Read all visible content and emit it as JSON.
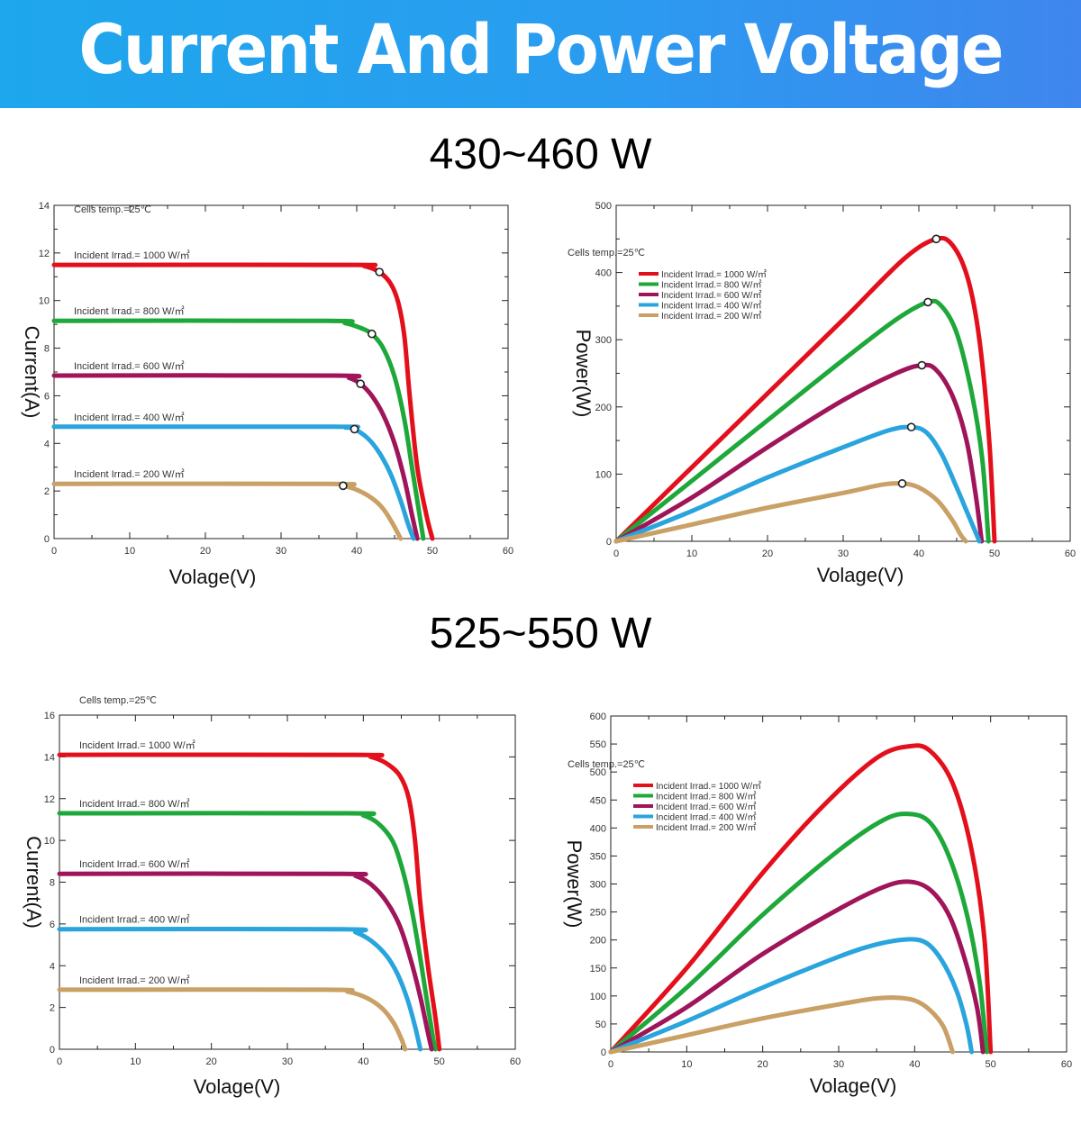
{
  "banner": {
    "title": "Current And Power Voltage"
  },
  "sections": [
    {
      "title": "430~460 W"
    },
    {
      "title": "525~550 W"
    }
  ],
  "colors": {
    "banner_start": "#1ea7ec",
    "banner_end": "#3f86ee",
    "irrad_1000": "#e3101c",
    "irrad_800": "#1ea83a",
    "irrad_600": "#a0145a",
    "irrad_400": "#2aa4dd",
    "irrad_200": "#c9a065"
  },
  "chart_data": [
    {
      "type": "line",
      "xlabel": "Volage(V)",
      "ylabel": "Current(A)",
      "xlim": [
        0,
        60
      ],
      "ylim": [
        0,
        14
      ],
      "xticks": [
        0,
        10,
        20,
        30,
        40,
        50,
        60
      ],
      "yticks": [
        0,
        2,
        4,
        6,
        8,
        10,
        12,
        14
      ],
      "grid": false,
      "annotation": "Cells temp.=25℃",
      "series": [
        {
          "name": "Incident Irrad.= 1000 W/㎡",
          "color": "#e3101c",
          "points": [
            [
              0,
              11.5
            ],
            [
              39,
              11.5
            ],
            [
              41,
              11.45
            ],
            [
              43,
              11.2
            ],
            [
              44.5,
              10.7
            ],
            [
              45.5,
              9.9
            ],
            [
              46.3,
              8.5
            ],
            [
              47,
              6
            ],
            [
              48,
              3
            ],
            [
              49.2,
              1
            ],
            [
              50,
              0
            ]
          ],
          "mpp": [
            43,
            11.2
          ]
        },
        {
          "name": "Incident Irrad.= 800 W/㎡",
          "color": "#1ea83a",
          "points": [
            [
              0,
              9.15
            ],
            [
              36,
              9.15
            ],
            [
              38.5,
              9.05
            ],
            [
              40.5,
              8.85
            ],
            [
              42,
              8.6
            ],
            [
              43.5,
              8.0
            ],
            [
              45,
              6.8
            ],
            [
              46.3,
              5
            ],
            [
              47.3,
              3
            ],
            [
              48.2,
              1.2
            ],
            [
              48.8,
              0
            ]
          ],
          "mpp": [
            42,
            8.6
          ]
        },
        {
          "name": "Incident Irrad.= 600 W/㎡",
          "color": "#a0145a",
          "points": [
            [
              0,
              6.85
            ],
            [
              37,
              6.85
            ],
            [
              39,
              6.75
            ],
            [
              40.5,
              6.5
            ],
            [
              42,
              6.0
            ],
            [
              43.5,
              5.2
            ],
            [
              45,
              4
            ],
            [
              46.3,
              2.5
            ],
            [
              47.3,
              1.0
            ],
            [
              48,
              0
            ]
          ],
          "mpp": [
            40.5,
            6.5
          ]
        },
        {
          "name": "Incident Irrad.= 400 W/㎡",
          "color": "#2aa4dd",
          "points": [
            [
              0,
              4.7
            ],
            [
              37,
              4.7
            ],
            [
              38.5,
              4.67
            ],
            [
              39.7,
              4.6
            ],
            [
              41.5,
              4.2
            ],
            [
              43,
              3.6
            ],
            [
              44.5,
              2.7
            ],
            [
              45.8,
              1.6
            ],
            [
              46.8,
              0.6
            ],
            [
              47.5,
              0
            ]
          ],
          "mpp": [
            39.7,
            4.6
          ]
        },
        {
          "name": "Incident Irrad.= 200 W/㎡",
          "color": "#c9a065",
          "points": [
            [
              0,
              2.3
            ],
            [
              36.5,
              2.3
            ],
            [
              38.2,
              2.22
            ],
            [
              40,
              2.05
            ],
            [
              42,
              1.7
            ],
            [
              43.5,
              1.25
            ],
            [
              44.8,
              0.6
            ],
            [
              45.8,
              0
            ]
          ],
          "mpp": [
            38.2,
            2.22
          ]
        }
      ]
    },
    {
      "type": "line",
      "xlabel": "Volage(V)",
      "ylabel": "Power(W)",
      "xlim": [
        0,
        60
      ],
      "ylim": [
        0,
        500
      ],
      "xticks": [
        0,
        10,
        20,
        30,
        40,
        50,
        60
      ],
      "yticks": [
        0,
        100,
        200,
        300,
        400,
        500
      ],
      "grid": false,
      "annotation": "Cells temp.=25℃",
      "series": [
        {
          "name": "Incident Irrad.= 1000 W/㎡",
          "color": "#e3101c",
          "points": [
            [
              0,
              0
            ],
            [
              10,
              110
            ],
            [
              20,
              220
            ],
            [
              30,
              330
            ],
            [
              38,
              420
            ],
            [
              42.3,
              450
            ],
            [
              44.5,
              440
            ],
            [
              46.5,
              390
            ],
            [
              48,
              300
            ],
            [
              49.3,
              150
            ],
            [
              50,
              0
            ]
          ],
          "mpp": [
            42.3,
            450
          ]
        },
        {
          "name": "Incident Irrad.= 800 W/㎡",
          "color": "#1ea83a",
          "points": [
            [
              0,
              0
            ],
            [
              10,
              90
            ],
            [
              20,
              180
            ],
            [
              30,
              270
            ],
            [
              37,
              330
            ],
            [
              41.2,
              356
            ],
            [
              43,
              350
            ],
            [
              45,
              310
            ],
            [
              47,
              220
            ],
            [
              48.4,
              120
            ],
            [
              49.2,
              0
            ]
          ],
          "mpp": [
            41.2,
            356
          ]
        },
        {
          "name": "Incident Irrad.= 600 W/㎡",
          "color": "#a0145a",
          "points": [
            [
              0,
              0
            ],
            [
              10,
              65
            ],
            [
              20,
              140
            ],
            [
              30,
              210
            ],
            [
              37,
              250
            ],
            [
              40.4,
              262
            ],
            [
              42.3,
              255
            ],
            [
              44.5,
              215
            ],
            [
              46.3,
              150
            ],
            [
              47.5,
              70
            ],
            [
              48.3,
              0
            ]
          ],
          "mpp": [
            40.4,
            262
          ]
        },
        {
          "name": "Incident Irrad.= 400 W/㎡",
          "color": "#2aa4dd",
          "points": [
            [
              0,
              0
            ],
            [
              10,
              45
            ],
            [
              20,
              95
            ],
            [
              30,
              140
            ],
            [
              36,
              165
            ],
            [
              39,
              170
            ],
            [
              41,
              162
            ],
            [
              43,
              130
            ],
            [
              45,
              80
            ],
            [
              46.5,
              40
            ],
            [
              48,
              0
            ]
          ],
          "mpp": [
            39,
            170
          ]
        },
        {
          "name": "Incident Irrad.= 200 W/㎡",
          "color": "#c9a065",
          "points": [
            [
              0,
              0
            ],
            [
              10,
              25
            ],
            [
              20,
              50
            ],
            [
              30,
              72
            ],
            [
              35,
              84
            ],
            [
              37.8,
              86
            ],
            [
              40,
              80
            ],
            [
              42.5,
              60
            ],
            [
              44.5,
              30
            ],
            [
              45.5,
              10
            ],
            [
              46.2,
              0
            ]
          ],
          "mpp": [
            37.8,
            86
          ]
        }
      ]
    },
    {
      "type": "line",
      "xlabel": "Volage(V)",
      "ylabel": "Current(A)",
      "xlim": [
        0,
        60
      ],
      "ylim": [
        0,
        16
      ],
      "xticks": [
        0,
        10,
        20,
        30,
        40,
        50,
        60
      ],
      "yticks": [
        0,
        2,
        4,
        6,
        8,
        10,
        12,
        14,
        16
      ],
      "grid": false,
      "annotation": "Cells temp.=25℃",
      "series": [
        {
          "name": "Incident Irrad.= 1000 W/㎡",
          "color": "#e3101c",
          "points": [
            [
              0,
              14.1
            ],
            [
              39,
              14.1
            ],
            [
              41,
              14.0
            ],
            [
              43,
              13.7
            ],
            [
              44.8,
              13.1
            ],
            [
              46,
              12
            ],
            [
              46.8,
              10
            ],
            [
              47.5,
              7
            ],
            [
              48.5,
              4
            ],
            [
              49.5,
              1.5
            ],
            [
              50,
              0
            ]
          ],
          "mpp": null
        },
        {
          "name": "Incident Irrad.= 800 W/㎡",
          "color": "#1ea83a",
          "points": [
            [
              0,
              11.3
            ],
            [
              38,
              11.3
            ],
            [
              40,
              11.2
            ],
            [
              42,
              10.8
            ],
            [
              43.8,
              10
            ],
            [
              45,
              8.8
            ],
            [
              46.2,
              7
            ],
            [
              47.3,
              4.8
            ],
            [
              48.3,
              2.5
            ],
            [
              49.2,
              0.5
            ],
            [
              49.5,
              0
            ]
          ],
          "mpp": null
        },
        {
          "name": "Incident Irrad.= 600 W/㎡",
          "color": "#a0145a",
          "points": [
            [
              0,
              8.4
            ],
            [
              37,
              8.4
            ],
            [
              39,
              8.3
            ],
            [
              41,
              7.9
            ],
            [
              43,
              7.1
            ],
            [
              44.8,
              5.9
            ],
            [
              46.3,
              4.2
            ],
            [
              47.5,
              2.5
            ],
            [
              48.5,
              0.8
            ],
            [
              49,
              0
            ]
          ],
          "mpp": null
        },
        {
          "name": "Incident Irrad.= 400 W/㎡",
          "color": "#2aa4dd",
          "points": [
            [
              0,
              5.75
            ],
            [
              37,
              5.75
            ],
            [
              39,
              5.6
            ],
            [
              41,
              5.2
            ],
            [
              43,
              4.5
            ],
            [
              44.5,
              3.6
            ],
            [
              45.8,
              2.4
            ],
            [
              46.8,
              1.1
            ],
            [
              47.5,
              0
            ]
          ],
          "mpp": null
        },
        {
          "name": "Incident Irrad.= 200 W/㎡",
          "color": "#c9a065",
          "points": [
            [
              0,
              2.85
            ],
            [
              35,
              2.85
            ],
            [
              38,
              2.75
            ],
            [
              40.5,
              2.45
            ],
            [
              42.5,
              1.95
            ],
            [
              44,
              1.25
            ],
            [
              45,
              0.5
            ],
            [
              45.5,
              0
            ]
          ],
          "mpp": null
        }
      ]
    },
    {
      "type": "line",
      "xlabel": "Volage(V)",
      "ylabel": "Power(W)",
      "xlim": [
        0,
        60
      ],
      "ylim": [
        0,
        600
      ],
      "xticks": [
        0,
        10,
        20,
        30,
        40,
        50,
        60
      ],
      "yticks": [
        0,
        50,
        100,
        150,
        200,
        250,
        300,
        350,
        400,
        450,
        500,
        550,
        600
      ],
      "grid": false,
      "annotation": "Cells temp.=25℃",
      "series": [
        {
          "name": "Incident Irrad.= 1000 W/㎡",
          "color": "#e3101c",
          "points": [
            [
              0,
              0
            ],
            [
              10,
              150
            ],
            [
              20,
              320
            ],
            [
              28,
              440
            ],
            [
              35,
              525
            ],
            [
              39.3,
              546
            ],
            [
              42,
              538
            ],
            [
              45,
              480
            ],
            [
              47.5,
              360
            ],
            [
              49.2,
              200
            ],
            [
              50,
              0
            ]
          ],
          "mpp": null
        },
        {
          "name": "Incident Irrad.= 800 W/㎡",
          "color": "#1ea83a",
          "points": [
            [
              0,
              0
            ],
            [
              10,
              115
            ],
            [
              20,
              245
            ],
            [
              30,
              360
            ],
            [
              36,
              415
            ],
            [
              39.3,
              425
            ],
            [
              42,
              410
            ],
            [
              44.5,
              350
            ],
            [
              46.8,
              250
            ],
            [
              48.5,
              130
            ],
            [
              49.5,
              0
            ]
          ],
          "mpp": null
        },
        {
          "name": "Incident Irrad.= 600 W/㎡",
          "color": "#a0145a",
          "points": [
            [
              0,
              0
            ],
            [
              10,
              80
            ],
            [
              20,
              175
            ],
            [
              30,
              255
            ],
            [
              36,
              295
            ],
            [
              39.3,
              304
            ],
            [
              42,
              290
            ],
            [
              44.5,
              245
            ],
            [
              46.5,
              170
            ],
            [
              48.2,
              80
            ],
            [
              49,
              0
            ]
          ],
          "mpp": null
        },
        {
          "name": "Incident Irrad.= 400 W/㎡",
          "color": "#2aa4dd",
          "points": [
            [
              0,
              0
            ],
            [
              10,
              55
            ],
            [
              20,
              115
            ],
            [
              30,
              170
            ],
            [
              35,
              192
            ],
            [
              39,
              201
            ],
            [
              41.5,
              195
            ],
            [
              43.5,
              165
            ],
            [
              45.5,
              110
            ],
            [
              46.8,
              50
            ],
            [
              47.5,
              0
            ]
          ],
          "mpp": null
        },
        {
          "name": "Incident Irrad.= 200 W/㎡",
          "color": "#c9a065",
          "points": [
            [
              0,
              0
            ],
            [
              10,
              30
            ],
            [
              20,
              60
            ],
            [
              30,
              85
            ],
            [
              34.5,
              95
            ],
            [
              37.5,
              97
            ],
            [
              40,
              92
            ],
            [
              42,
              75
            ],
            [
              43.8,
              45
            ],
            [
              45,
              0
            ]
          ],
          "mpp": null
        }
      ]
    }
  ]
}
